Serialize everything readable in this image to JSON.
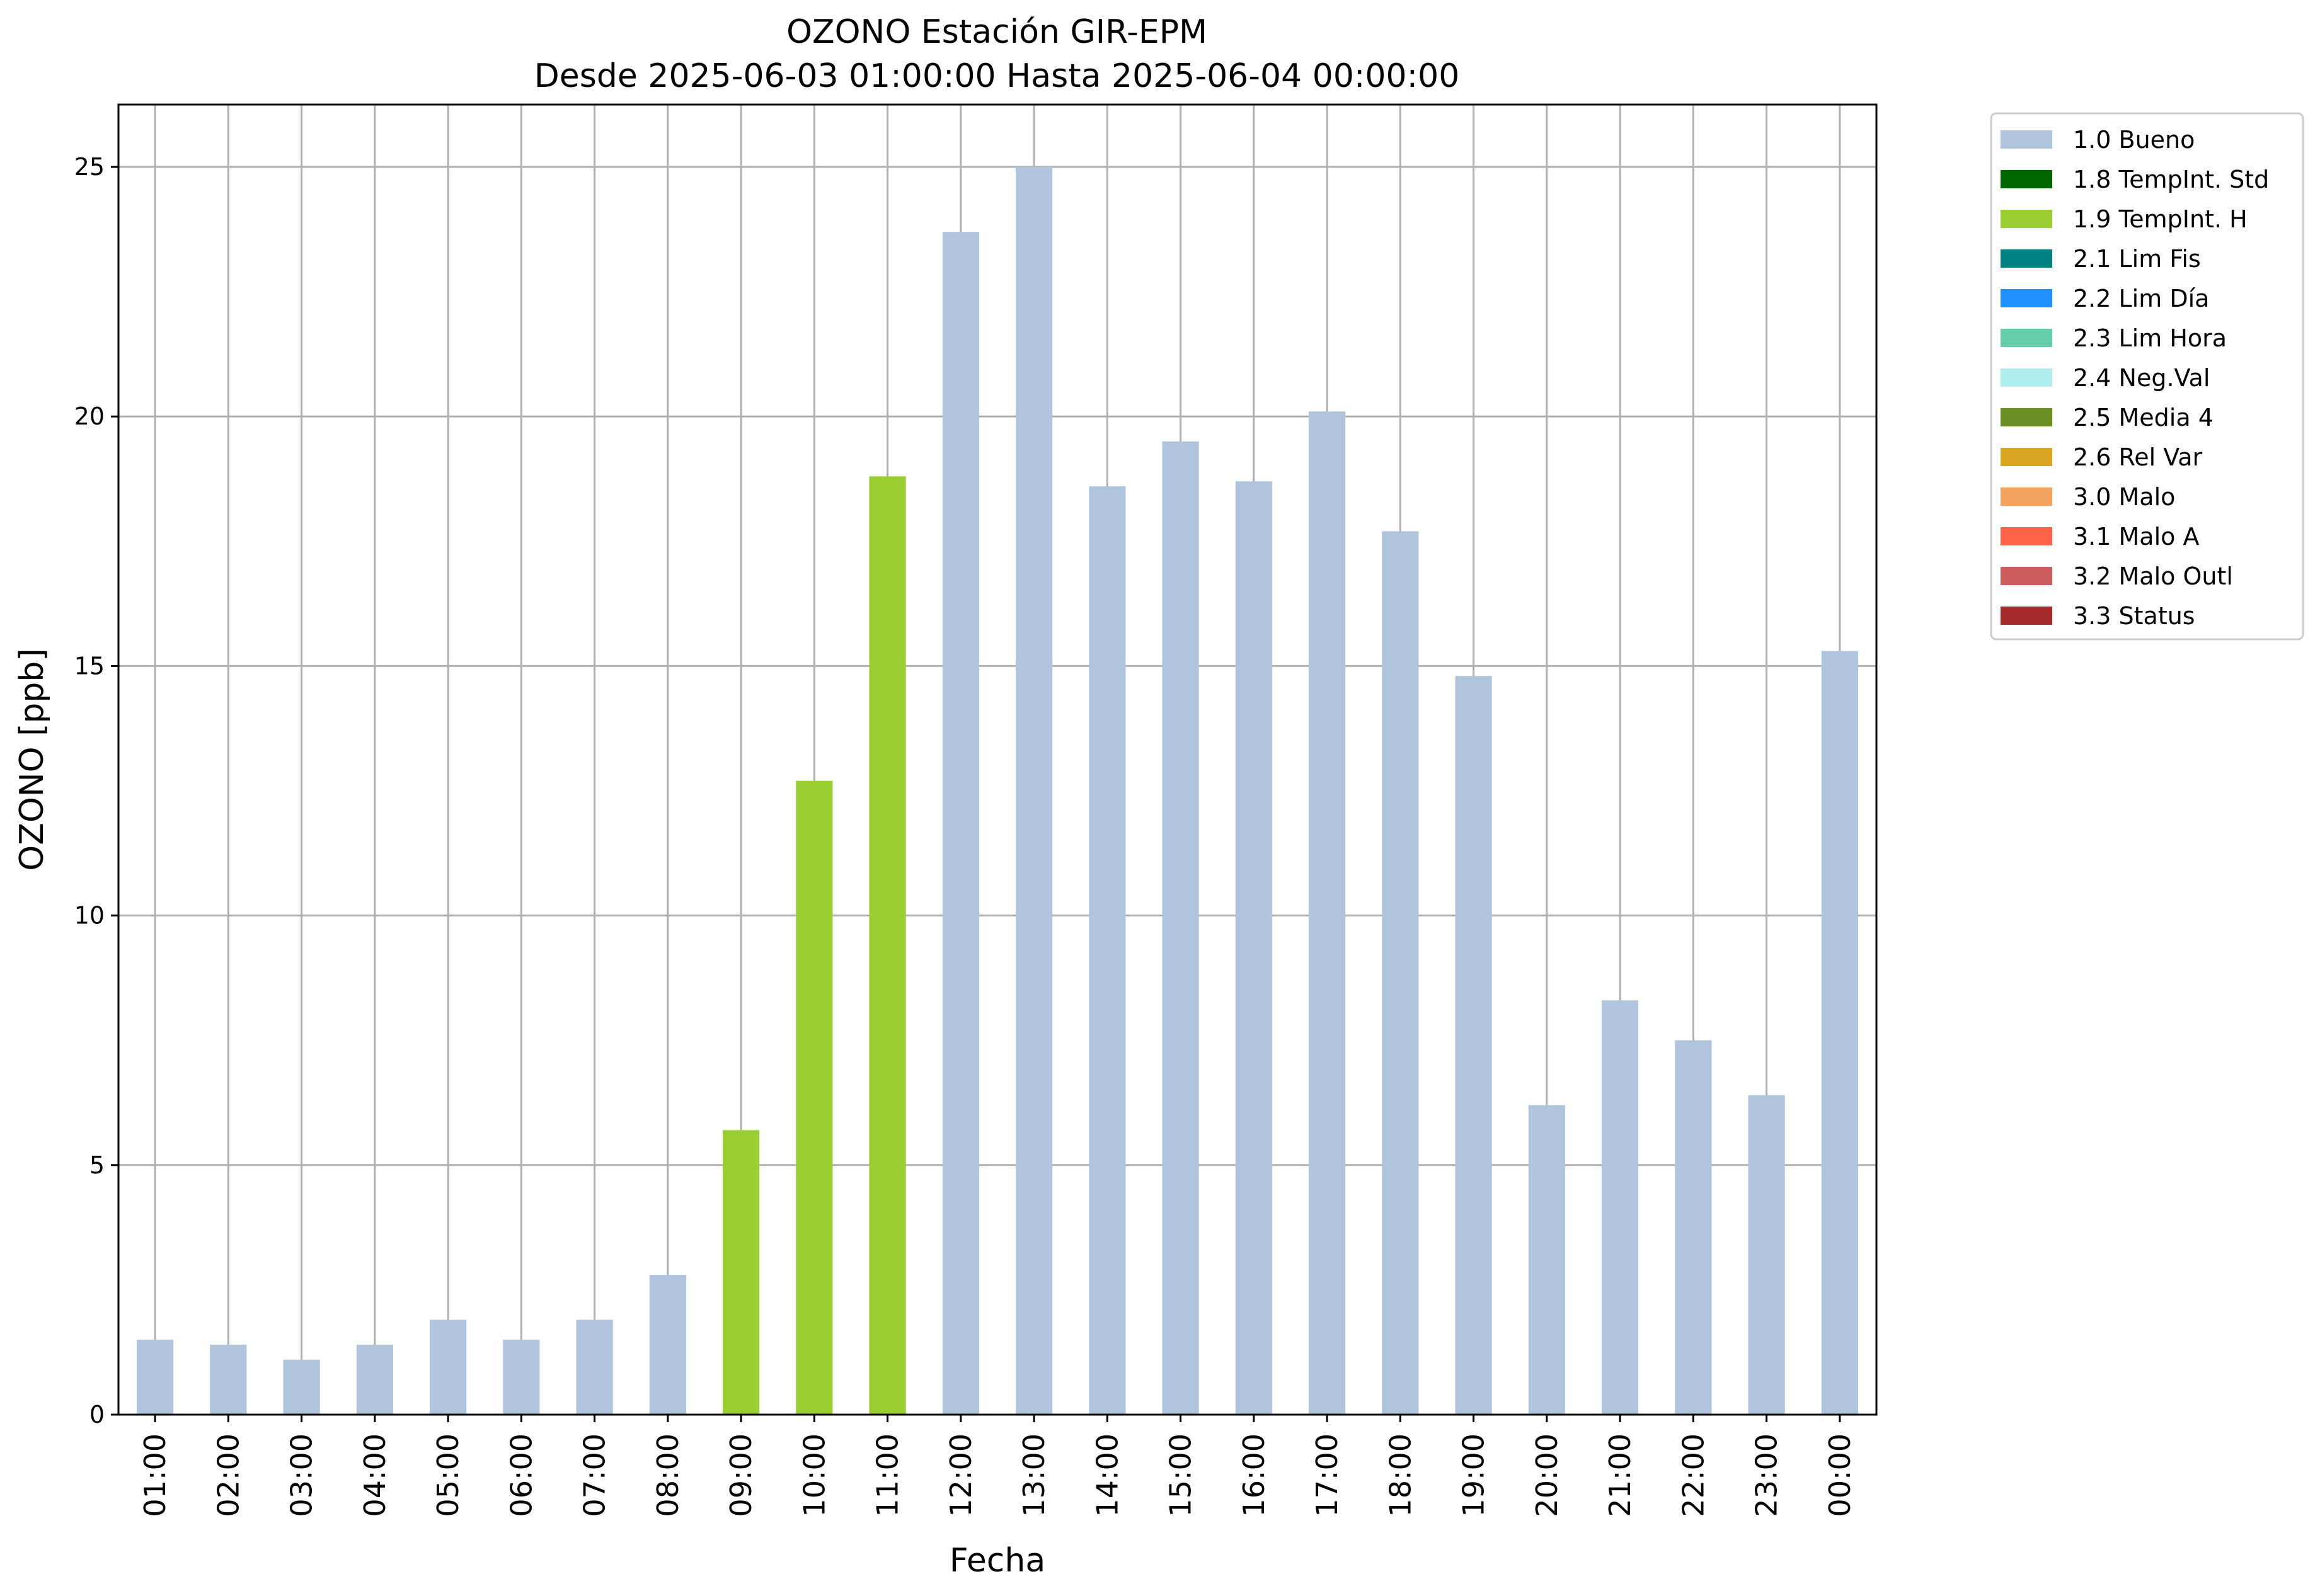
{
  "chart_data": {
    "type": "bar",
    "title": "OZONO Estación GIR-EPM",
    "subtitle": "Desde 2025-06-03 01:00:00 Hasta 2025-06-04 00:00:00",
    "xlabel": "Fecha",
    "ylabel": "OZONO [ppb]",
    "ylim": [
      0,
      26.25
    ],
    "yticks": [
      0,
      5,
      10,
      15,
      20,
      25
    ],
    "grid": true,
    "legend_position": "outside-top-right",
    "categories": [
      "01:00",
      "02:00",
      "03:00",
      "04:00",
      "05:00",
      "06:00",
      "07:00",
      "08:00",
      "09:00",
      "10:00",
      "11:00",
      "12:00",
      "13:00",
      "14:00",
      "15:00",
      "16:00",
      "17:00",
      "18:00",
      "19:00",
      "20:00",
      "21:00",
      "22:00",
      "23:00",
      "00:00"
    ],
    "values": [
      1.5,
      1.4,
      1.1,
      1.4,
      1.9,
      1.5,
      1.9,
      2.8,
      5.7,
      12.7,
      18.8,
      23.7,
      25.0,
      18.6,
      19.5,
      18.7,
      20.1,
      17.7,
      14.8,
      6.2,
      8.3,
      7.5,
      6.4,
      15.3
    ],
    "flags": [
      "1.0 Bueno",
      "1.0 Bueno",
      "1.0 Bueno",
      "1.0 Bueno",
      "1.0 Bueno",
      "1.0 Bueno",
      "1.0 Bueno",
      "1.0 Bueno",
      "1.9 TempInt. H",
      "1.9 TempInt. H",
      "1.9 TempInt. H",
      "1.0 Bueno",
      "1.0 Bueno",
      "1.0 Bueno",
      "1.0 Bueno",
      "1.0 Bueno",
      "1.0 Bueno",
      "1.0 Bueno",
      "1.0 Bueno",
      "1.0 Bueno",
      "1.0 Bueno",
      "1.0 Bueno",
      "1.0 Bueno",
      "1.0 Bueno"
    ],
    "legend": [
      {
        "label": "1.0 Bueno",
        "color": "#b0c4de"
      },
      {
        "label": "1.8 TempInt. Std",
        "color": "#006400"
      },
      {
        "label": "1.9 TempInt. H",
        "color": "#9acd32"
      },
      {
        "label": "2.1 Lim Fis",
        "color": "#008080"
      },
      {
        "label": "2.2 Lim Día",
        "color": "#1e90ff"
      },
      {
        "label": "2.3 Lim Hora",
        "color": "#66cdaa"
      },
      {
        "label": "2.4 Neg.Val",
        "color": "#afeeee"
      },
      {
        "label": "2.5 Media 4",
        "color": "#6b8e23"
      },
      {
        "label": "2.6 Rel Var",
        "color": "#daa520"
      },
      {
        "label": "3.0 Malo",
        "color": "#f4a460"
      },
      {
        "label": "3.1 Malo A",
        "color": "#ff6347"
      },
      {
        "label": "3.2 Malo Outl",
        "color": "#cd5c5c"
      },
      {
        "label": "3.3 Status",
        "color": "#a52a2a"
      }
    ]
  }
}
